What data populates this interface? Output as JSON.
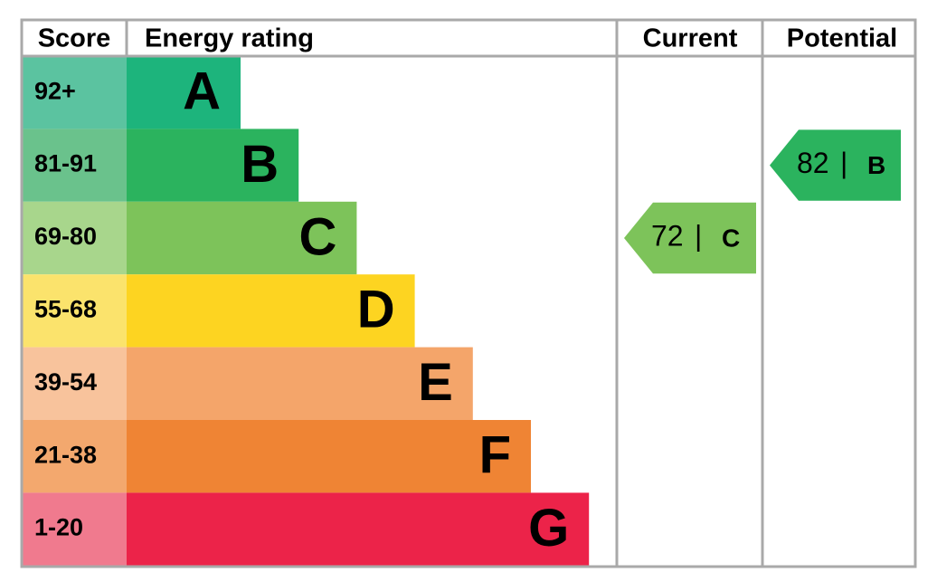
{
  "headers": {
    "score": "Score",
    "rating": "Energy rating",
    "current": "Current",
    "potential": "Potential"
  },
  "bands": [
    {
      "score": "92+",
      "letter": "A",
      "color": "#1db47c",
      "score_color": "#5bc3a0"
    },
    {
      "score": "81-91",
      "letter": "B",
      "color": "#2bb35e",
      "score_color": "#6ac28c"
    },
    {
      "score": "69-80",
      "letter": "C",
      "color": "#7dc35a",
      "score_color": "#a8d68c"
    },
    {
      "score": "55-68",
      "letter": "D",
      "color": "#fdd421",
      "score_color": "#fbe36c"
    },
    {
      "score": "39-54",
      "letter": "E",
      "color": "#f4a56a",
      "score_color": "#f8c39c"
    },
    {
      "score": "21-38",
      "letter": "F",
      "color": "#ef8434",
      "score_color": "#f3a86e"
    },
    {
      "score": "1-20",
      "letter": "G",
      "color": "#ec2349",
      "score_color": "#f07a8e"
    }
  ],
  "current": {
    "value": 72,
    "separator": "|",
    "letter": "C"
  },
  "potential": {
    "value": 82,
    "separator": "|",
    "letter": "B"
  }
}
